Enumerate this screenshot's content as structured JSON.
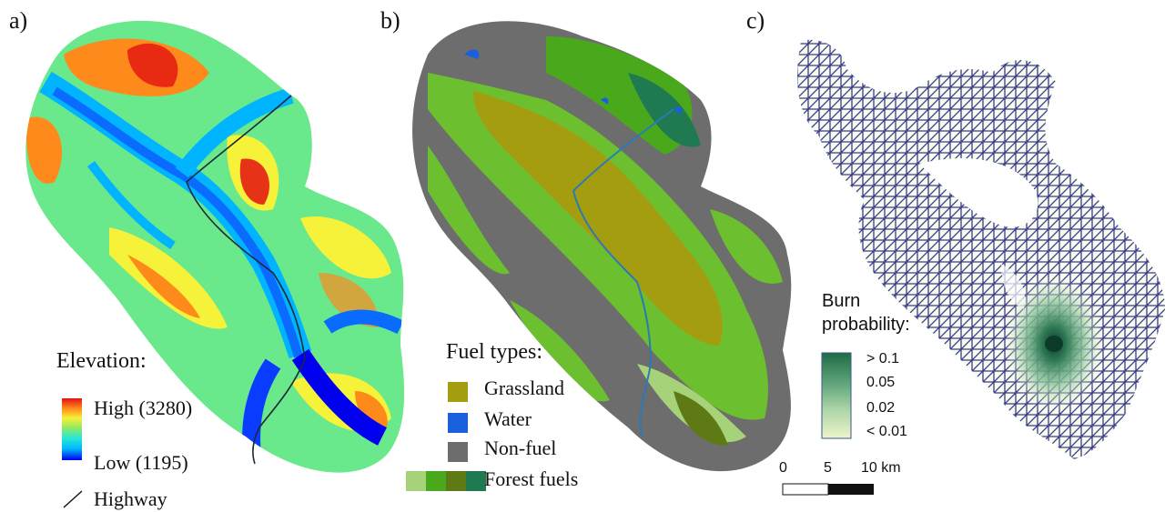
{
  "panels": {
    "a": {
      "letter": "a)"
    },
    "b": {
      "letter": "b)"
    },
    "c": {
      "letter": "c)"
    }
  },
  "elevation_legend": {
    "title": "Elevation:",
    "high_label": "High (3280)",
    "low_label": "Low (1195)",
    "highway_label": "Highway",
    "ramp_colors": [
      "#0000ee",
      "#00b4ff",
      "#22e8d8",
      "#8fe864",
      "#f6f23a",
      "#ff8a1c",
      "#e31212"
    ]
  },
  "fuel_legend": {
    "title": "Fuel types:",
    "items": [
      {
        "label": "Grassland",
        "color": "#a59d10"
      },
      {
        "label": "Water",
        "color": "#1a5fdc"
      },
      {
        "label": "Non-fuel",
        "color": "#6d6d6d"
      }
    ],
    "forest_label": "Forest fuels",
    "forest_colors": [
      "#a6d37a",
      "#4aa81c",
      "#5e7a14",
      "#1f7a52"
    ]
  },
  "burn_legend": {
    "title_line1": "Burn",
    "title_line2": "probability:",
    "labels": [
      "> 0.1",
      "0.05",
      "0.02",
      "< 0.01"
    ],
    "ramp_colors": [
      "#1f6b45",
      "#5ea37a",
      "#a9d3a6",
      "#eef5c9"
    ]
  },
  "scale_bar": {
    "ticks": [
      "0",
      "5",
      "10 km"
    ]
  },
  "colors": {
    "grid_line": "#2c2f8a",
    "non_fuel": "#6d6d6d",
    "grass": "#a59d10",
    "forest_light": "#6cbf2f",
    "highway": "#1c2a35"
  }
}
